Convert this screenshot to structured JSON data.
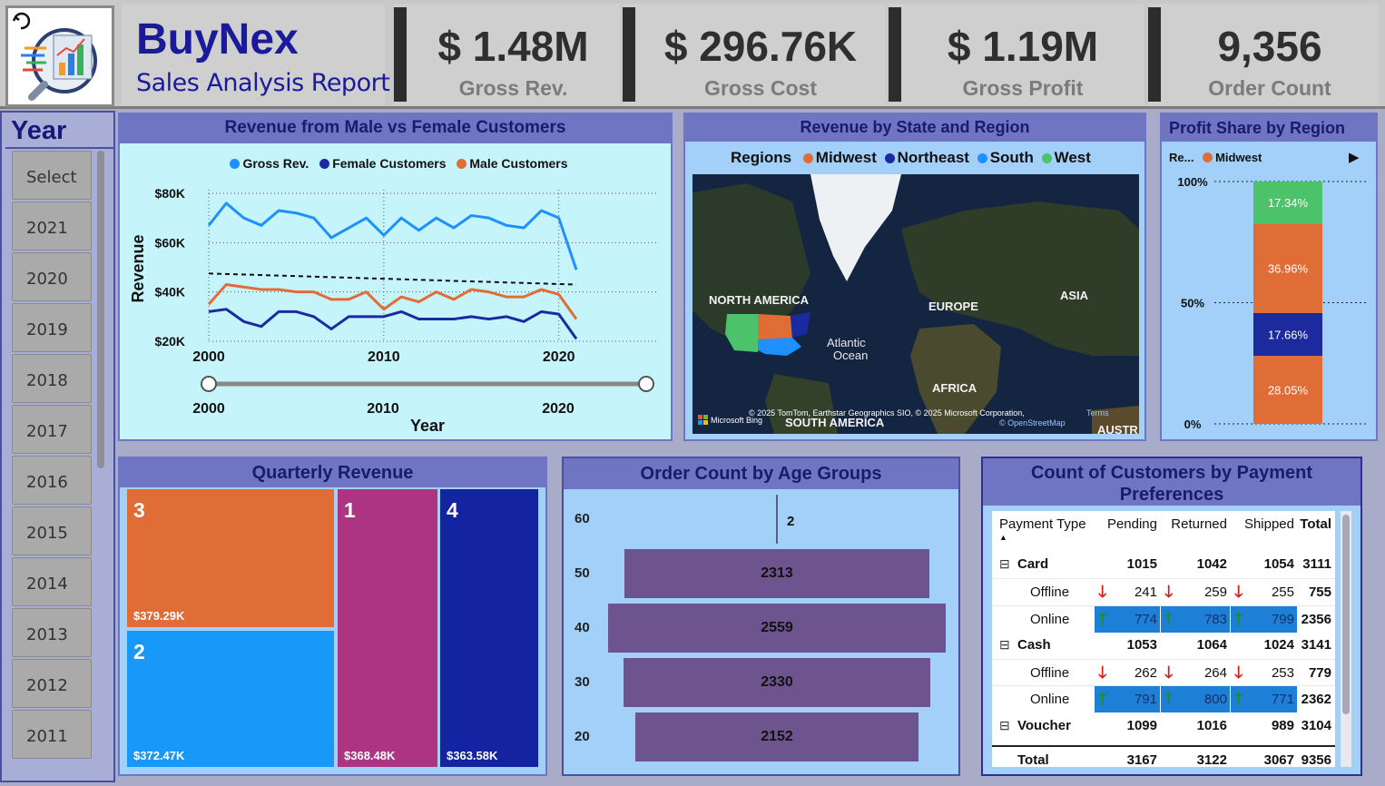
{
  "header": {
    "brand_name": "BuyNex",
    "brand_subtitle": "Sales Analysis Report",
    "kpis": [
      {
        "value": "$ 1.48M",
        "label": "Gross Rev."
      },
      {
        "value": "$ 296.76K",
        "label": "Gross Cost"
      },
      {
        "value": "$ 1.19M",
        "label": "Gross Profit"
      },
      {
        "value": "9,356",
        "label": "Order Count"
      }
    ]
  },
  "year_slicer": {
    "title": "Year",
    "items": [
      "Select",
      "2021",
      "2020",
      "2019",
      "2018",
      "2017",
      "2016",
      "2015",
      "2014",
      "2013",
      "2012",
      "2011"
    ]
  },
  "line_chart": {
    "title": "Revenue from Male vs Female Customers",
    "legend": [
      "Gross Rev.",
      "Female Customers",
      "Male Customers"
    ],
    "ylabel": "Revenue",
    "xlabel": "Year",
    "y_ticks": [
      "$80K",
      "$60K",
      "$40K",
      "$20K"
    ],
    "x_ticks": [
      "2000",
      "2010",
      "2020"
    ],
    "slider_ticks": [
      "2000",
      "2010",
      "2020"
    ]
  },
  "map": {
    "title": "Revenue by State and Region",
    "legend_title": "Regions",
    "legend": [
      "Midwest",
      "Northeast",
      "South",
      "West"
    ],
    "labels": {
      "north_america": "NORTH AMERICA",
      "europe": "EUROPE",
      "asia": "ASIA",
      "atlantic": "Atlantic",
      "ocean": "Ocean",
      "africa": "AFRICA",
      "south_america": "SOUTH AMERICA",
      "austr": "AUSTR",
      "copyright": "© 2025 TomTom, Earthstar Geographics SIO, © 2025 Microsoft Corporation,",
      "terms": "Terms",
      "osm": "© OpenStreetMap",
      "bing": "Microsoft Bing"
    }
  },
  "profit_share": {
    "title": "Profit Share by Region",
    "legend_prefix": "Re...",
    "legend_item": "Midwest",
    "y_ticks": [
      "100%",
      "50%",
      "0%"
    ],
    "segments": [
      {
        "label": "17.34%",
        "value": 17.34,
        "color": "#4cc36a"
      },
      {
        "label": "36.96%",
        "value": 36.96,
        "color": "#e06c36"
      },
      {
        "label": "17.66%",
        "value": 17.66,
        "color": "#1c2a9e"
      },
      {
        "label": "28.05%",
        "value": 28.05,
        "color": "#e06c36"
      }
    ]
  },
  "quarterly": {
    "title": "Quarterly Revenue",
    "tiles": [
      {
        "quarter": "3",
        "value": "$379.29K",
        "color": "#e06c36"
      },
      {
        "quarter": "2",
        "value": "$372.47K",
        "color": "#1898f8"
      },
      {
        "quarter": "1",
        "value": "$368.48K",
        "color": "#ad3383"
      },
      {
        "quarter": "4",
        "value": "$363.58K",
        "color": "#1424a1"
      }
    ]
  },
  "age_groups": {
    "title": "Order Count by Age Groups",
    "rows": [
      {
        "age": "60",
        "count": "2",
        "value": 2
      },
      {
        "age": "50",
        "count": "2313",
        "value": 2313
      },
      {
        "age": "40",
        "count": "2559",
        "value": 2559
      },
      {
        "age": "30",
        "count": "2330",
        "value": 2330
      },
      {
        "age": "20",
        "count": "2152",
        "value": 2152
      }
    ]
  },
  "payments": {
    "title_line1": "Count of Customers by Payment",
    "title_line2": "Preferences",
    "headers": [
      "Payment Type",
      "Pending",
      "Returned",
      "Shipped",
      "Total"
    ],
    "rows": [
      {
        "name": "Card",
        "level": 0,
        "vals": [
          "1015",
          "1042",
          "1054",
          "3111"
        ]
      },
      {
        "name": "Offline",
        "level": 1,
        "trend": "down",
        "vals": [
          "241",
          "259",
          "255",
          "755"
        ]
      },
      {
        "name": "Online",
        "level": 1,
        "trend": "up",
        "vals": [
          "774",
          "783",
          "799",
          "2356"
        ]
      },
      {
        "name": "Cash",
        "level": 0,
        "vals": [
          "1053",
          "1064",
          "1024",
          "3141"
        ]
      },
      {
        "name": "Offline",
        "level": 1,
        "trend": "down",
        "vals": [
          "262",
          "264",
          "253",
          "779"
        ]
      },
      {
        "name": "Online",
        "level": 1,
        "trend": "up",
        "vals": [
          "791",
          "800",
          "771",
          "2362"
        ]
      },
      {
        "name": "Voucher",
        "level": 0,
        "vals": [
          "1099",
          "1016",
          "989",
          "3104"
        ]
      }
    ],
    "total": {
      "name": "Total",
      "vals": [
        "3167",
        "3122",
        "3067",
        "9356"
      ]
    },
    "expand_glyph": "⊟"
  },
  "chart_data": [
    {
      "type": "line",
      "title": "Revenue from Male vs Female Customers",
      "xlabel": "Year",
      "ylabel": "Revenue",
      "x": [
        2000,
        2001,
        2002,
        2003,
        2004,
        2005,
        2006,
        2007,
        2008,
        2009,
        2010,
        2011,
        2012,
        2013,
        2014,
        2015,
        2016,
        2017,
        2018,
        2019,
        2020,
        2021
      ],
      "ylim": [
        20000,
        80000
      ],
      "series": [
        {
          "name": "Gross Rev.",
          "color": "#1e90ff",
          "values": [
            67000,
            76000,
            70000,
            67000,
            73000,
            72000,
            70000,
            62000,
            66000,
            70000,
            63000,
            70000,
            65000,
            70000,
            66000,
            71000,
            70000,
            67000,
            66000,
            73000,
            70000,
            49000
          ]
        },
        {
          "name": "Female Customers",
          "color": "#1a2aa0",
          "values": [
            32000,
            33000,
            28000,
            26000,
            32000,
            32000,
            30000,
            25000,
            30000,
            30000,
            30000,
            32000,
            29000,
            29000,
            29000,
            30000,
            29000,
            30000,
            28000,
            32000,
            31000,
            21000
          ]
        },
        {
          "name": "Male Customers",
          "color": "#e06c36",
          "values": [
            35000,
            43000,
            42000,
            41000,
            41000,
            40000,
            40000,
            37000,
            37000,
            40000,
            33000,
            38000,
            36000,
            40000,
            37000,
            41000,
            40000,
            38000,
            38000,
            41000,
            39000,
            29000
          ]
        }
      ],
      "trendline": {
        "series": "Male Customers",
        "start": 47500,
        "end": 43000
      }
    },
    {
      "type": "bar",
      "title": "Profit Share by Region",
      "categories": [
        "West",
        "Midwest",
        "Northeast",
        "South"
      ],
      "values": [
        17.34,
        36.96,
        17.66,
        28.05
      ],
      "ylim": [
        0,
        100
      ]
    },
    {
      "type": "bar",
      "title": "Order Count by Age Groups",
      "categories": [
        "60",
        "50",
        "40",
        "30",
        "20"
      ],
      "values": [
        2,
        2313,
        2559,
        2330,
        2152
      ]
    },
    {
      "type": "heatmap",
      "title": "Quarterly Revenue",
      "categories": [
        "3",
        "2",
        "1",
        "4"
      ],
      "values": [
        379.29,
        372.47,
        368.48,
        363.58
      ]
    }
  ]
}
